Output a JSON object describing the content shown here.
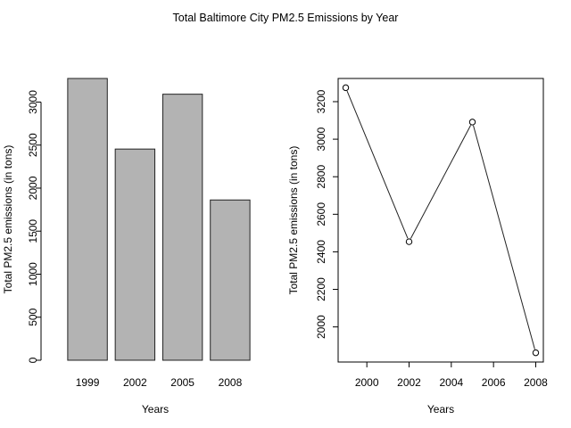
{
  "title": "Total Baltimore City PM2.5 Emissions by Year",
  "chart_data": [
    {
      "type": "bar",
      "categories": [
        "1999",
        "2002",
        "2005",
        "2008"
      ],
      "values": [
        3274.18,
        2453.92,
        3091.35,
        1862.28
      ],
      "xlabel": "Years",
      "ylabel": "Total PM2.5 emissions (in tons)",
      "ylim": [
        0,
        3274.18
      ],
      "yticks": [
        0,
        500,
        1000,
        1500,
        2000,
        2500,
        3000
      ],
      "bar_color": "#b3b3b3",
      "grid": false
    },
    {
      "type": "line",
      "x": [
        1999,
        2002,
        2005,
        2008
      ],
      "y": [
        3274.18,
        2453.92,
        3091.35,
        1862.28
      ],
      "xlabel": "Years",
      "ylabel": "Total PM2.5 emissions (in tons)",
      "xlim": [
        1998.64,
        2008.36
      ],
      "ylim": [
        1813.02,
        3323.44
      ],
      "xticks": [
        2000,
        2002,
        2004,
        2006,
        2008
      ],
      "yticks": [
        2000,
        2200,
        2400,
        2600,
        2800,
        3000,
        3200
      ],
      "markers": "open-circle",
      "grid": false
    }
  ]
}
